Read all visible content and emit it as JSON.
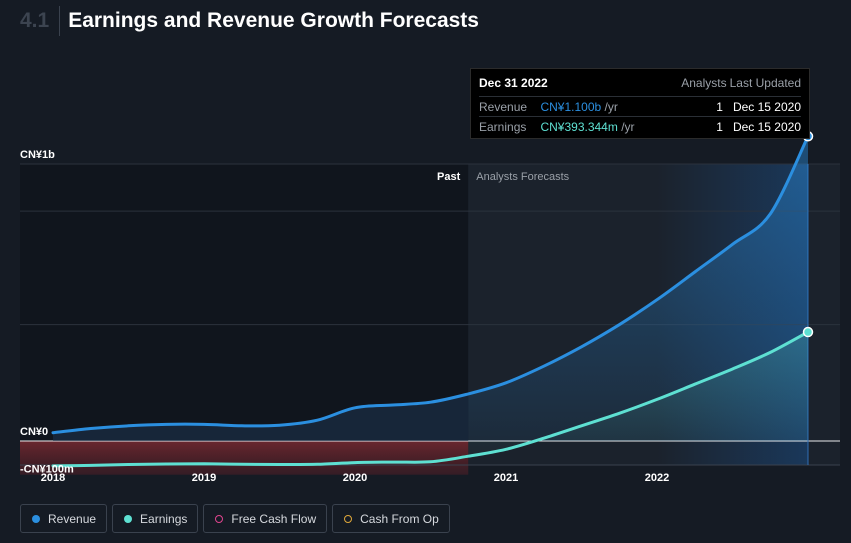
{
  "header": {
    "section_number": "4.1",
    "title": "Earnings and Revenue Growth Forecasts"
  },
  "tooltip": {
    "date": "Dec 31 2022",
    "col_analysts": "Analysts",
    "col_last_updated": "Last Updated",
    "rows": [
      {
        "label": "Revenue",
        "value": "CN¥1.100b",
        "unit": "/yr",
        "analysts": "1",
        "updated": "Dec 15 2020",
        "color": "#2b8fe0"
      },
      {
        "label": "Earnings",
        "value": "CN¥393.344m",
        "unit": "/yr",
        "analysts": "1",
        "updated": "Dec 15 2020",
        "color": "#5ee0d2"
      }
    ]
  },
  "chart_data": {
    "type": "line",
    "y_ticks": [
      {
        "value": 1000,
        "label": "CN¥1b"
      },
      {
        "value": 0,
        "label": "CN¥0"
      },
      {
        "value": -100,
        "label": "-CN¥100m"
      }
    ],
    "x_ticks": [
      {
        "value": 2018.0,
        "label": "2018"
      },
      {
        "value": 2019.0,
        "label": "2019"
      },
      {
        "value": 2020.0,
        "label": "2020"
      },
      {
        "value": 2021.0,
        "label": "2021"
      },
      {
        "value": 2022.0,
        "label": "2022"
      }
    ],
    "past_label": "Past",
    "forecast_label": "Analysts Forecasts",
    "forecast_start": 2020.75,
    "series": [
      {
        "name": "Revenue",
        "color": "#2b8fe0",
        "x": [
          2018.0,
          2018.25,
          2018.5,
          2018.75,
          2019.0,
          2019.25,
          2019.5,
          2019.75,
          2020.0,
          2020.25,
          2020.5,
          2020.75,
          2021.0,
          2021.25,
          2021.5,
          2021.75,
          2022.0,
          2022.25,
          2022.5,
          2022.75,
          2023.0
        ],
        "y": [
          30,
          45,
          55,
          60,
          60,
          55,
          57,
          75,
          120,
          130,
          140,
          170,
          210,
          270,
          340,
          420,
          510,
          610,
          710,
          820,
          1100
        ]
      },
      {
        "name": "Earnings",
        "color": "#5ee0d2",
        "x": [
          2018.0,
          2018.25,
          2018.5,
          2018.75,
          2019.0,
          2019.25,
          2019.5,
          2019.75,
          2020.0,
          2020.25,
          2020.5,
          2020.75,
          2021.0,
          2021.25,
          2021.5,
          2021.75,
          2022.0,
          2022.25,
          2022.5,
          2022.75,
          2023.0
        ],
        "y": [
          -90,
          -88,
          -85,
          -83,
          -82,
          -84,
          -85,
          -84,
          -78,
          -76,
          -75,
          -55,
          -30,
          10,
          55,
          100,
          150,
          205,
          260,
          320,
          393.344
        ]
      }
    ],
    "legend": [
      {
        "label": "Revenue",
        "color": "#2b8fe0",
        "style": "filled"
      },
      {
        "label": "Earnings",
        "color": "#5ee0d2",
        "style": "filled"
      },
      {
        "label": "Free Cash Flow",
        "color": "#e0458f",
        "style": "hollow"
      },
      {
        "label": "Cash From Op",
        "color": "#e0a83a",
        "style": "hollow"
      }
    ]
  }
}
